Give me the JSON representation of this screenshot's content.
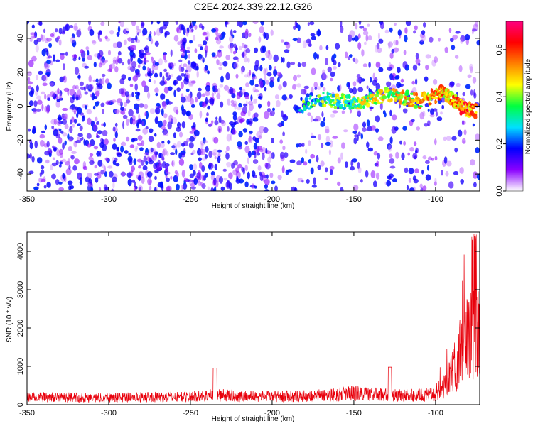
{
  "title": "C2E4.2024.339.22.12.G26",
  "chart_data": [
    {
      "type": "heatmap",
      "xlabel": "Height of straight line (km)",
      "ylabel": "Frequency (Hz)",
      "xlim": [
        -350,
        -73
      ],
      "ylim": [
        -50,
        50
      ],
      "xticks": [
        -350,
        -300,
        -250,
        -200,
        -150,
        -100
      ],
      "yticks": [
        -40,
        -20,
        0,
        20,
        40
      ],
      "colorbar": {
        "label": "Normalized spectral amplitude",
        "range": [
          0,
          0.72
        ],
        "ticks": [
          0.0,
          0.2,
          0.4,
          0.6
        ],
        "tick_labels": [
          "0.0",
          "0.2",
          "0.4",
          "0.6"
        ],
        "colormap": [
          "#ffffff",
          "#8a00ff",
          "#0000ff",
          "#00e0ff",
          "#00ff40",
          "#ffff00",
          "#ff8000",
          "#ff0000",
          "#ff0080"
        ]
      },
      "signal_trace": {
        "x": [
          -183,
          -170,
          -160,
          -150,
          -140,
          -130,
          -120,
          -110,
          -100,
          -95,
          -90,
          -85,
          -80,
          -75
        ],
        "y": [
          0,
          4,
          3,
          2,
          4,
          7,
          5,
          3,
          6,
          9,
          4,
          0,
          -2,
          -3
        ]
      }
    },
    {
      "type": "line",
      "xlabel": "Height of straight line (km)",
      "ylabel": "SNR (10 * v/v)",
      "xlim": [
        -350,
        -73
      ],
      "ylim": [
        0,
        4500
      ],
      "xticks": [
        -350,
        -300,
        -250,
        -200,
        -150,
        -100
      ],
      "yticks": [
        0,
        1000,
        2000,
        3000,
        4000
      ],
      "series": [
        {
          "color": "#e8000b",
          "x": [
            -350,
            -330,
            -310,
            -290,
            -270,
            -250,
            -235,
            -220,
            -200,
            -180,
            -160,
            -150,
            -140,
            -120,
            -105,
            -100,
            -95,
            -90,
            -85,
            -80,
            -76,
            -73
          ],
          "y": [
            250,
            240,
            230,
            240,
            250,
            260,
            320,
            280,
            270,
            280,
            330,
            380,
            340,
            300,
            320,
            380,
            650,
            1000,
            1600,
            2200,
            2600,
            2300
          ]
        }
      ]
    }
  ]
}
